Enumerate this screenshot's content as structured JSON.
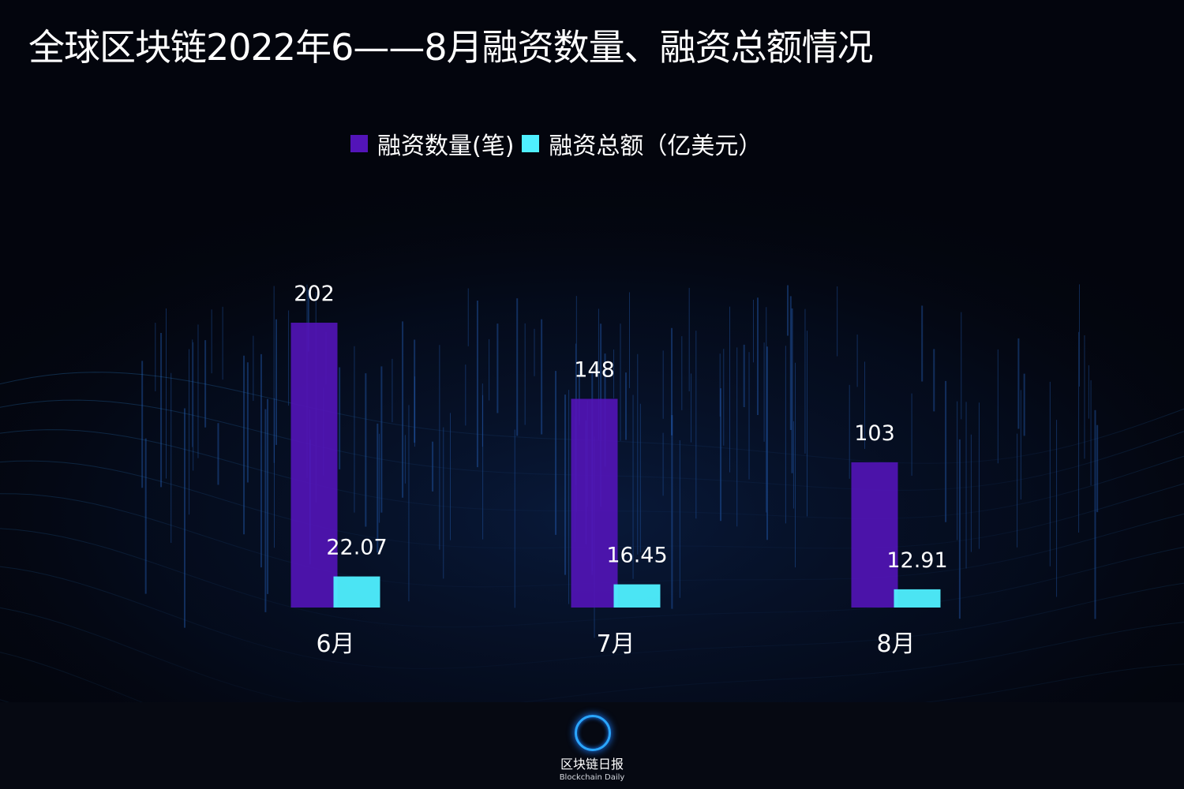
{
  "title": "全球区块链2022年6——8月融资数量、融资总额情况",
  "legend": {
    "series1": "融资数量(笔)",
    "series2": "融资总额（亿美元）"
  },
  "colors": {
    "count": "#5314b8",
    "amount": "#4ff0ff",
    "background": "#03050d"
  },
  "chart_data": {
    "type": "bar",
    "title": "全球区块链2022年6——8月融资数量、融资总额情况",
    "categories": [
      "6月",
      "7月",
      "8月"
    ],
    "series": [
      {
        "name": "融资数量(笔)",
        "values": [
          202,
          148,
          103
        ]
      },
      {
        "name": "融资总额（亿美元）",
        "values": [
          22.07,
          16.45,
          12.91
        ]
      }
    ],
    "data_labels": [
      [
        "202",
        "148",
        "103"
      ],
      [
        "22.07",
        "16.45",
        "12.91"
      ]
    ],
    "ylim": [
      0,
      202
    ],
    "grid": false,
    "legend_position": "top-center"
  },
  "logo": {
    "name": "区块链日报",
    "subtitle": "Blockchain Daily"
  }
}
